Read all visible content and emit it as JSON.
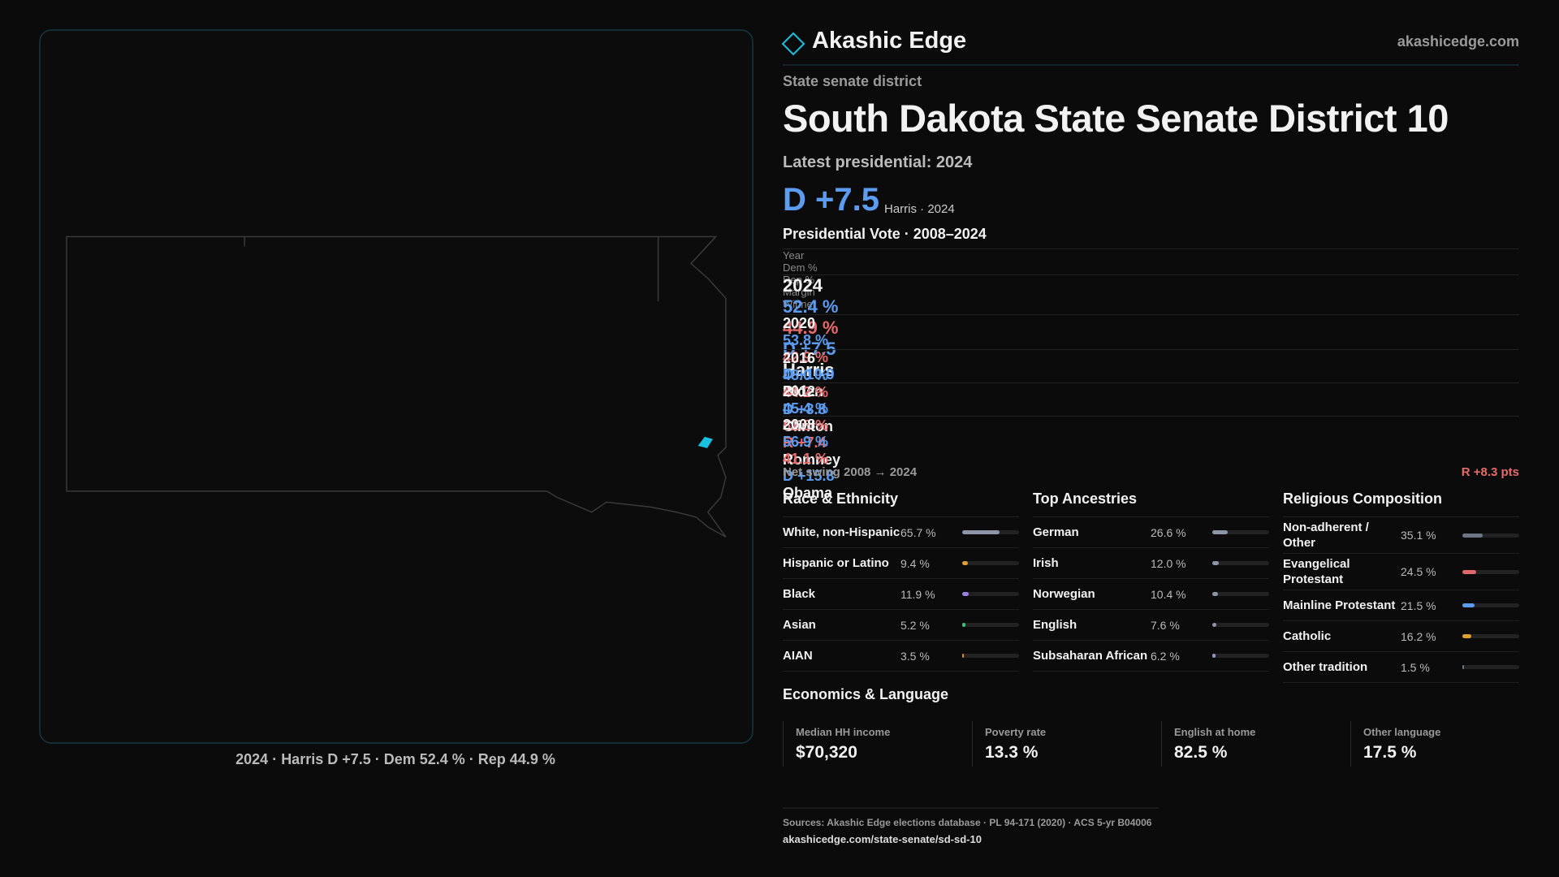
{
  "header": {
    "brand": "Akashic Edge",
    "site": "akashicedge.com"
  },
  "district": {
    "kind": "State senate district",
    "title": "South Dakota State Senate District 10",
    "latest_label": "Latest presidential: 2024",
    "margin": "D +7.5",
    "margin_note": "Harris · 2024"
  },
  "votes": {
    "title": "Presidential Vote · 2008–2024",
    "columns": [
      "Year",
      "Dem %",
      "Rep %",
      "Margin",
      "Winner"
    ],
    "rows": [
      [
        "2024",
        "52.4 %",
        "44.9 %",
        "D +7.5",
        "Harris"
      ],
      [
        "2020",
        "53.8 %",
        "42.9 %",
        "D +10.9",
        "Biden"
      ],
      [
        "2016",
        "48.0 %",
        "44.2 %",
        "D +3.8",
        "Clinton"
      ],
      [
        "2012",
        "45.4 %",
        "52.8 %",
        "R +7.4",
        "Romney"
      ],
      [
        "2008",
        "56.9 %",
        "41.1 %",
        "D +15.8",
        "Obama"
      ]
    ]
  },
  "swing": {
    "label": "Net swing 2008 → 2024",
    "value": "R +8.3 pts"
  },
  "race": {
    "title": "Race & Ethnicity",
    "xlim": [
      0,
      100
    ],
    "categories": [
      "White, non-Hispanic",
      "Hispanic or Latino",
      "Black",
      "Asian",
      "AIAN"
    ],
    "values": [
      65.7,
      9.4,
      11.9,
      5.2,
      3.5
    ],
    "value_labels": [
      "65.7 %",
      "9.4 %",
      "11.9 %",
      "5.2 %",
      "3.5 %"
    ],
    "colors": [
      "#8c96a8",
      "#e0a030",
      "#9a80e0",
      "#3cc07c",
      "#e08a30"
    ]
  },
  "ancestry": {
    "title": "Top Ancestries",
    "xlim": [
      0,
      100
    ],
    "categories": [
      "German",
      "Irish",
      "Norwegian",
      "English",
      "Subsaharan African"
    ],
    "values": [
      26.6,
      12.0,
      10.4,
      7.6,
      6.2
    ],
    "value_labels": [
      "26.6 %",
      "12.0 %",
      "10.4 %",
      "7.6 %",
      "6.2 %"
    ],
    "colors": [
      "#8c96a8",
      "#8c96a8",
      "#8c96a8",
      "#8c96a8",
      "#8c96c8"
    ]
  },
  "religion": {
    "title": "Religious Composition",
    "xlim": [
      0,
      100
    ],
    "categories": [
      "Non-adherent / Other",
      "Evangelical Protestant",
      "Mainline Protestant",
      "Catholic",
      "Other tradition"
    ],
    "values": [
      35.1,
      24.5,
      21.5,
      16.2,
      1.5
    ],
    "value_labels": [
      "35.1 %",
      "24.5 %",
      "21.5 %",
      "16.2 %",
      "1.5 %"
    ],
    "colors": [
      "#6e7686",
      "#e06868",
      "#5b9cf0",
      "#e0a030",
      "#6e7686"
    ]
  },
  "economics": {
    "title": "Economics & Language",
    "items": [
      {
        "label": "Median HH income",
        "value": "$70,320"
      },
      {
        "label": "Poverty rate",
        "value": "13.3 %"
      },
      {
        "label": "English at home",
        "value": "82.5 %"
      },
      {
        "label": "Other language",
        "value": "17.5 %"
      }
    ]
  },
  "map": {
    "caption": "2024 · Harris D +7.5 · Dem 52.4 % · Rep 44.9 %"
  },
  "sources": {
    "text": "Sources: Akashic Edge elections database · PL 94-171 (2020) · ACS 5-yr B04006",
    "url": "akashicedge.com/state-senate/sd-sd-10"
  }
}
